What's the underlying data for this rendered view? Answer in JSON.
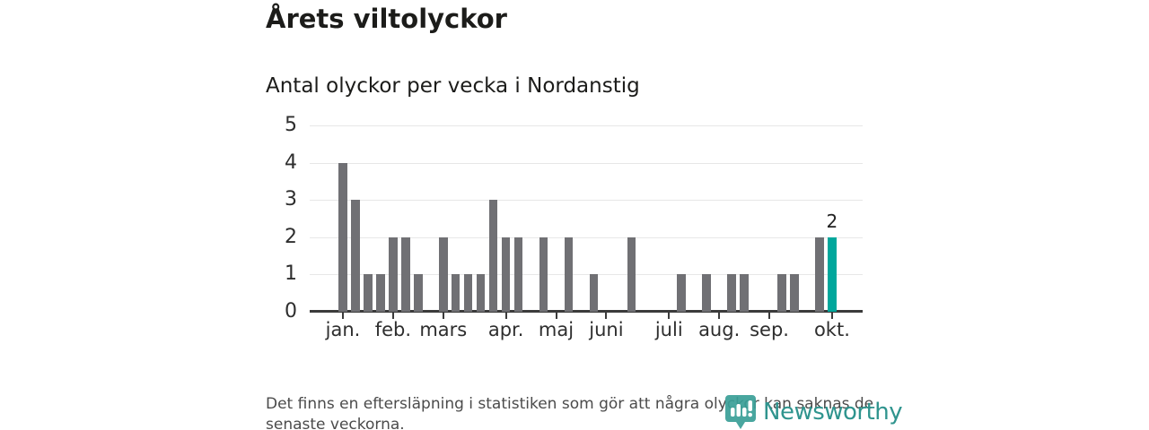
{
  "header": {
    "title": "Årets viltolyckor",
    "subtitle": "Antal olyckor per vecka i Nordanstig"
  },
  "chart_data": {
    "type": "bar",
    "title": "Årets viltolyckor",
    "subtitle": "Antal olyckor per vecka i Nordanstig",
    "x_unit": "vecka",
    "weeks": [
      1,
      2,
      3,
      4,
      5,
      6,
      7,
      8,
      9,
      10,
      11,
      12,
      13,
      14,
      15,
      16,
      17,
      18,
      19,
      20,
      21,
      22,
      23,
      24,
      25,
      26,
      27,
      28,
      29,
      30,
      31,
      32,
      33,
      34,
      35,
      36,
      37,
      38,
      39,
      40
    ],
    "values": [
      4,
      3,
      1,
      1,
      2,
      2,
      1,
      0,
      2,
      1,
      1,
      1,
      3,
      2,
      2,
      0,
      2,
      0,
      2,
      0,
      1,
      0,
      0,
      2,
      0,
      0,
      0,
      1,
      0,
      1,
      0,
      1,
      1,
      0,
      0,
      1,
      1,
      0,
      2,
      2
    ],
    "month_ticks": [
      {
        "label": "jan.",
        "week": 1
      },
      {
        "label": "feb.",
        "week": 5
      },
      {
        "label": "mars",
        "week": 9
      },
      {
        "label": "apr.",
        "week": 14
      },
      {
        "label": "maj",
        "week": 18
      },
      {
        "label": "juni",
        "week": 22
      },
      {
        "label": "juli",
        "week": 27
      },
      {
        "label": "aug.",
        "week": 31
      },
      {
        "label": "sep.",
        "week": 35
      },
      {
        "label": "okt.",
        "week": 40
      }
    ],
    "y_ticks": [
      0,
      1,
      2,
      3,
      4,
      5
    ],
    "ylim": [
      0,
      5
    ],
    "grid": "horizontal",
    "legend": "none",
    "bar_color": "#707074",
    "highlight_color": "#00a79c",
    "highlight_week": 40,
    "highlight_value_label": "2"
  },
  "footer": {
    "note_line1": "Det finns en eftersläpning i statistiken som gör att några olyckor kan saknas de",
    "note_line2": "senaste veckorna."
  },
  "logo": {
    "text": "Newsworthy",
    "color": "#2f948e"
  }
}
